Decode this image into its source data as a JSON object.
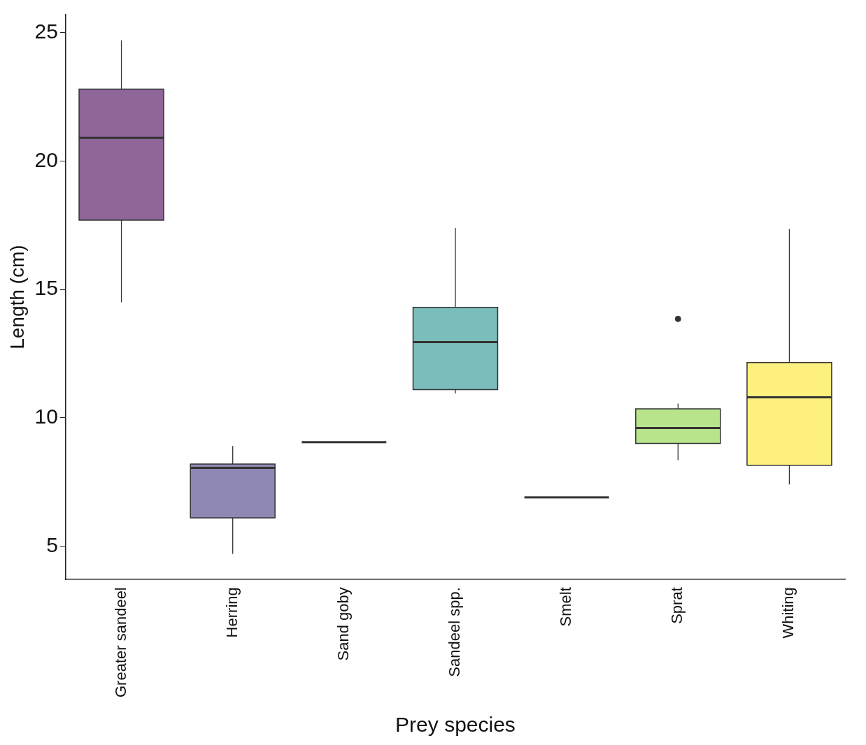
{
  "chart_data": {
    "type": "box",
    "xlabel": "Prey species",
    "ylabel": "Length (cm)",
    "categories": [
      "Greater sandeel",
      "Herring",
      "Sand goby",
      "Sandeel spp.",
      "Smelt",
      "Sprat",
      "Whiting"
    ],
    "colors": [
      "#8e6698",
      "#8f88b5",
      "#333333",
      "#7bbdbb",
      "#333333",
      "#b8e58c",
      "#fdf07e"
    ],
    "boxes": [
      {
        "low": 14.5,
        "q1": 17.7,
        "median": 20.9,
        "q3": 22.8,
        "high": 24.7
      },
      {
        "low": 4.7,
        "q1": 6.1,
        "median": 8.05,
        "q3": 8.2,
        "high": 8.9
      },
      {
        "low": 9.05,
        "q1": 9.05,
        "median": 9.05,
        "q3": 9.05,
        "high": 9.05
      },
      {
        "low": 10.95,
        "q1": 11.1,
        "median": 12.95,
        "q3": 14.3,
        "high": 17.4
      },
      {
        "low": 6.9,
        "q1": 6.9,
        "median": 6.9,
        "q3": 6.9,
        "high": 6.9
      },
      {
        "low": 8.35,
        "q1": 9.0,
        "median": 9.6,
        "q3": 10.35,
        "high": 10.55,
        "outliers": [
          13.85
        ]
      },
      {
        "low": 7.4,
        "q1": 8.15,
        "median": 10.8,
        "q3": 12.15,
        "high": 17.35
      }
    ],
    "ylim": [
      3.7,
      25.7
    ],
    "yticks": [
      5,
      10,
      15,
      20,
      25
    ],
    "grid": false,
    "legend": false
  }
}
